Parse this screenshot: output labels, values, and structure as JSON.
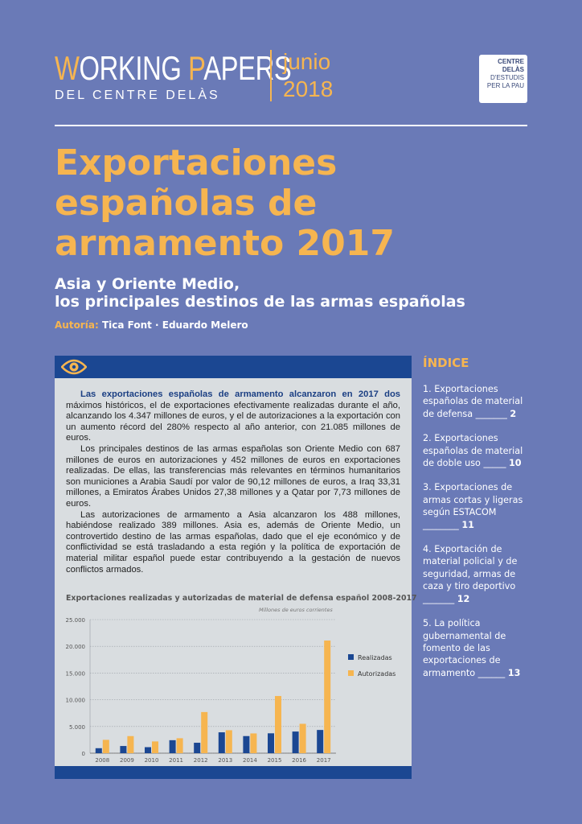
{
  "header": {
    "wp_first": "W",
    "wp_mid": "ORKING ",
    "wp_p": "P",
    "wp_rest": "APERS",
    "wp_sub": "DEL CENTRE DELÀS",
    "month": "junio",
    "year": "2018",
    "logo_line1": "CENTRE DELÀS",
    "logo_line2": "D'ESTUDIS",
    "logo_line3": "PER LA PAU"
  },
  "title": {
    "line1": "Exportaciones",
    "line2": "españolas de",
    "line3": "armamento 2017"
  },
  "subtitle": {
    "line1": "Asia y Oriente Medio,",
    "line2": "los principales destinos de las armas españolas"
  },
  "authors": {
    "label": "Autoría:",
    "names": "Tica Font · Eduardo Melero"
  },
  "abstract": {
    "p1_bold": "Las exportaciones españolas de armamento alcanzaron en 2017 dos",
    "p1_rest": " máximos históricos, el de exportaciones efectivamente realizadas durante el año, alcanzando los 4.347 millones de euros, y el de autorizaciones a la exportación con un aumento récord del  280% respecto al año anterior, con 21.085 millones de euros.",
    "p2": "Los principales destinos de las armas españolas son Oriente Medio con 687 millones de euros en autorizaciones y 452 millones de euros en exportaciones realizadas. De ellas, las transferencias más relevantes en términos humanitarios son municiones a Arabia Saudí por valor de 90,12 millones de euros, a Iraq 33,31 millones, a Emiratos Árabes Unidos 27,38 millones y a Qatar por 7,73 millones de euros.",
    "p3": "Las autorizaciones de armamento a Asia alcanzaron los 488 millones, habiéndose realizado 389 millones. Asia es, además de Oriente Medio, un controvertido destino de las armas españolas, dado que el eje económico y de conflictividad se está trasladando a esta región y la política de exportación de material militar español puede estar contribuyendo a la gestación de nuevos conflictos armados."
  },
  "indice": {
    "title": "ÍNDICE",
    "items": [
      {
        "text": "1. Exportaciones españolas de material de defensa _______",
        "page": "2"
      },
      {
        "text": "2. Exportaciones españolas de material de doble uso _____",
        "page": "10"
      },
      {
        "text": "3. Exportaciones de armas cortas y ligeras según ESTACOM ________",
        "page": "11"
      },
      {
        "text": "4. Exportación de material policial y de seguridad, armas de caza y tiro deportivo _______",
        "page": "12"
      },
      {
        "text": "5. La política gubernamental de fomento de las exportaciones de armamento ______",
        "page": "13"
      }
    ]
  },
  "colors": {
    "background": "#6a7ab7",
    "accent": "#f6b550",
    "navy": "#1b4792",
    "panel": "#d9dde0"
  },
  "icons": {
    "box_header": "eye-icon"
  },
  "chart_data": {
    "type": "bar",
    "title": "Exportaciones realizadas y autorizadas de material de defensa español 2008-2017",
    "units": "Millones de euros corrientes",
    "categories": [
      "2008",
      "2009",
      "2010",
      "2011",
      "2012",
      "2013",
      "2014",
      "2015",
      "2016",
      "2017"
    ],
    "series": [
      {
        "name": "Realizadas",
        "color": "#1b4792",
        "values": [
          934,
          1347,
          1128,
          2431,
          1953,
          3908,
          3203,
          3720,
          4052,
          4347
        ]
      },
      {
        "name": "Autorizadas",
        "color": "#f6b550",
        "values": [
          2500,
          3200,
          2200,
          2800,
          7700,
          4300,
          3700,
          10700,
          5500,
          21085
        ]
      }
    ],
    "yticks": [
      "25.000",
      "20.000",
      "15.000",
      "10.000",
      "5.000",
      "0"
    ],
    "ylim": [
      0,
      25000
    ],
    "legend_position": "right",
    "grid": true
  }
}
